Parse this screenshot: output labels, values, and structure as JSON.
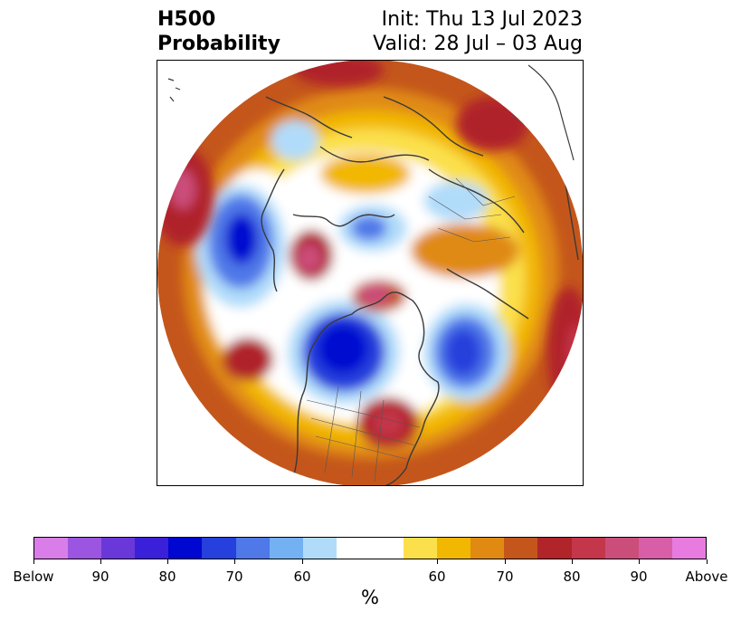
{
  "title": {
    "left_line1": "H500",
    "left_line2": "Probability",
    "right_line1": "Init: Thu 13 Jul 2023",
    "right_line2": "Valid: 28 Jul – 03 Aug"
  },
  "colorbar": {
    "unit": "%",
    "ticks": [
      "Below",
      "90",
      "80",
      "70",
      "60",
      "60",
      "70",
      "80",
      "90",
      "Above"
    ],
    "colors": [
      "#d97de8",
      "#9b55e0",
      "#6a38d8",
      "#3a20d8",
      "#0007d0",
      "#2540dc",
      "#4f78e8",
      "#74b1f2",
      "#b0dcfa",
      "#ffffff",
      "#fbe04c",
      "#f2b700",
      "#e08a12",
      "#c4561c",
      "#b0242a",
      "#c4364a",
      "#cb4e7a",
      "#d95ea8",
      "#e87be0"
    ]
  },
  "map": {
    "projection": "North Polar Stereographic",
    "background": "#ffffff"
  }
}
